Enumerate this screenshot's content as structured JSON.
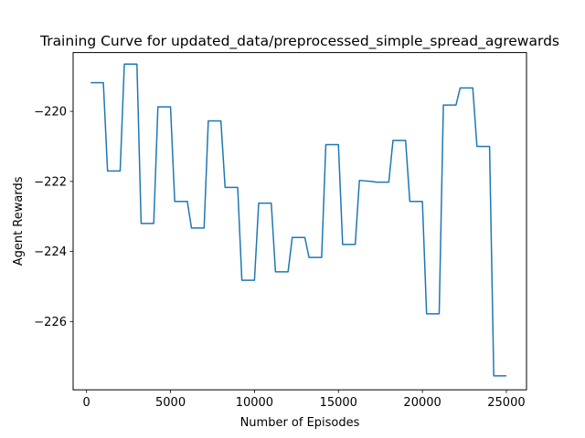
{
  "chart_data": {
    "type": "line",
    "title": "Training Curve for updated_data/preprocessed_simple_spread_agrewards",
    "xlabel": "Number of Episodes",
    "ylabel": "Agent Rewards",
    "xlim": [
      -800,
      26200
    ],
    "ylim": [
      -227.95,
      -218.32
    ],
    "xticks": [
      0,
      5000,
      10000,
      15000,
      20000,
      25000
    ],
    "xtick_labels": [
      "0",
      "5000",
      "10000",
      "15000",
      "20000",
      "25000"
    ],
    "yticks": [
      -226,
      -224,
      -222,
      -220
    ],
    "ytick_labels": [
      "−226",
      "−224",
      "−222",
      "−220"
    ],
    "grid": false,
    "line_color": "#1f77b4",
    "series": [
      {
        "x": [
          250,
          1000,
          1250,
          2000,
          2250,
          3000,
          3250,
          4000,
          4250,
          5000,
          5250,
          6000,
          6250,
          7000,
          7250,
          8000,
          8250,
          9000,
          9250,
          10000,
          10250,
          11000,
          11250,
          12000,
          12250,
          13000,
          13250,
          14000,
          14250,
          15000,
          15250,
          16000,
          16250,
          17000,
          17250,
          18000,
          18250,
          19000,
          19250,
          20000,
          20250,
          21000,
          21250,
          22000,
          22250,
          23000,
          23250,
          24000,
          24250,
          25000
        ],
        "y": [
          -219.18,
          -219.18,
          -221.7,
          -221.7,
          -218.65,
          -218.65,
          -223.2,
          -223.2,
          -219.87,
          -219.87,
          -222.57,
          -222.57,
          -223.33,
          -223.33,
          -220.27,
          -220.27,
          -222.17,
          -222.17,
          -224.82,
          -224.82,
          -222.62,
          -222.62,
          -224.58,
          -224.58,
          -223.6,
          -223.6,
          -224.17,
          -224.17,
          -220.95,
          -220.95,
          -223.8,
          -223.8,
          -221.97,
          -222.0,
          -222.02,
          -222.02,
          -220.83,
          -220.83,
          -222.57,
          -222.57,
          -225.78,
          -225.78,
          -219.82,
          -219.82,
          -219.33,
          -219.33,
          -221.0,
          -221.0,
          -227.55,
          -227.55
        ]
      }
    ]
  }
}
